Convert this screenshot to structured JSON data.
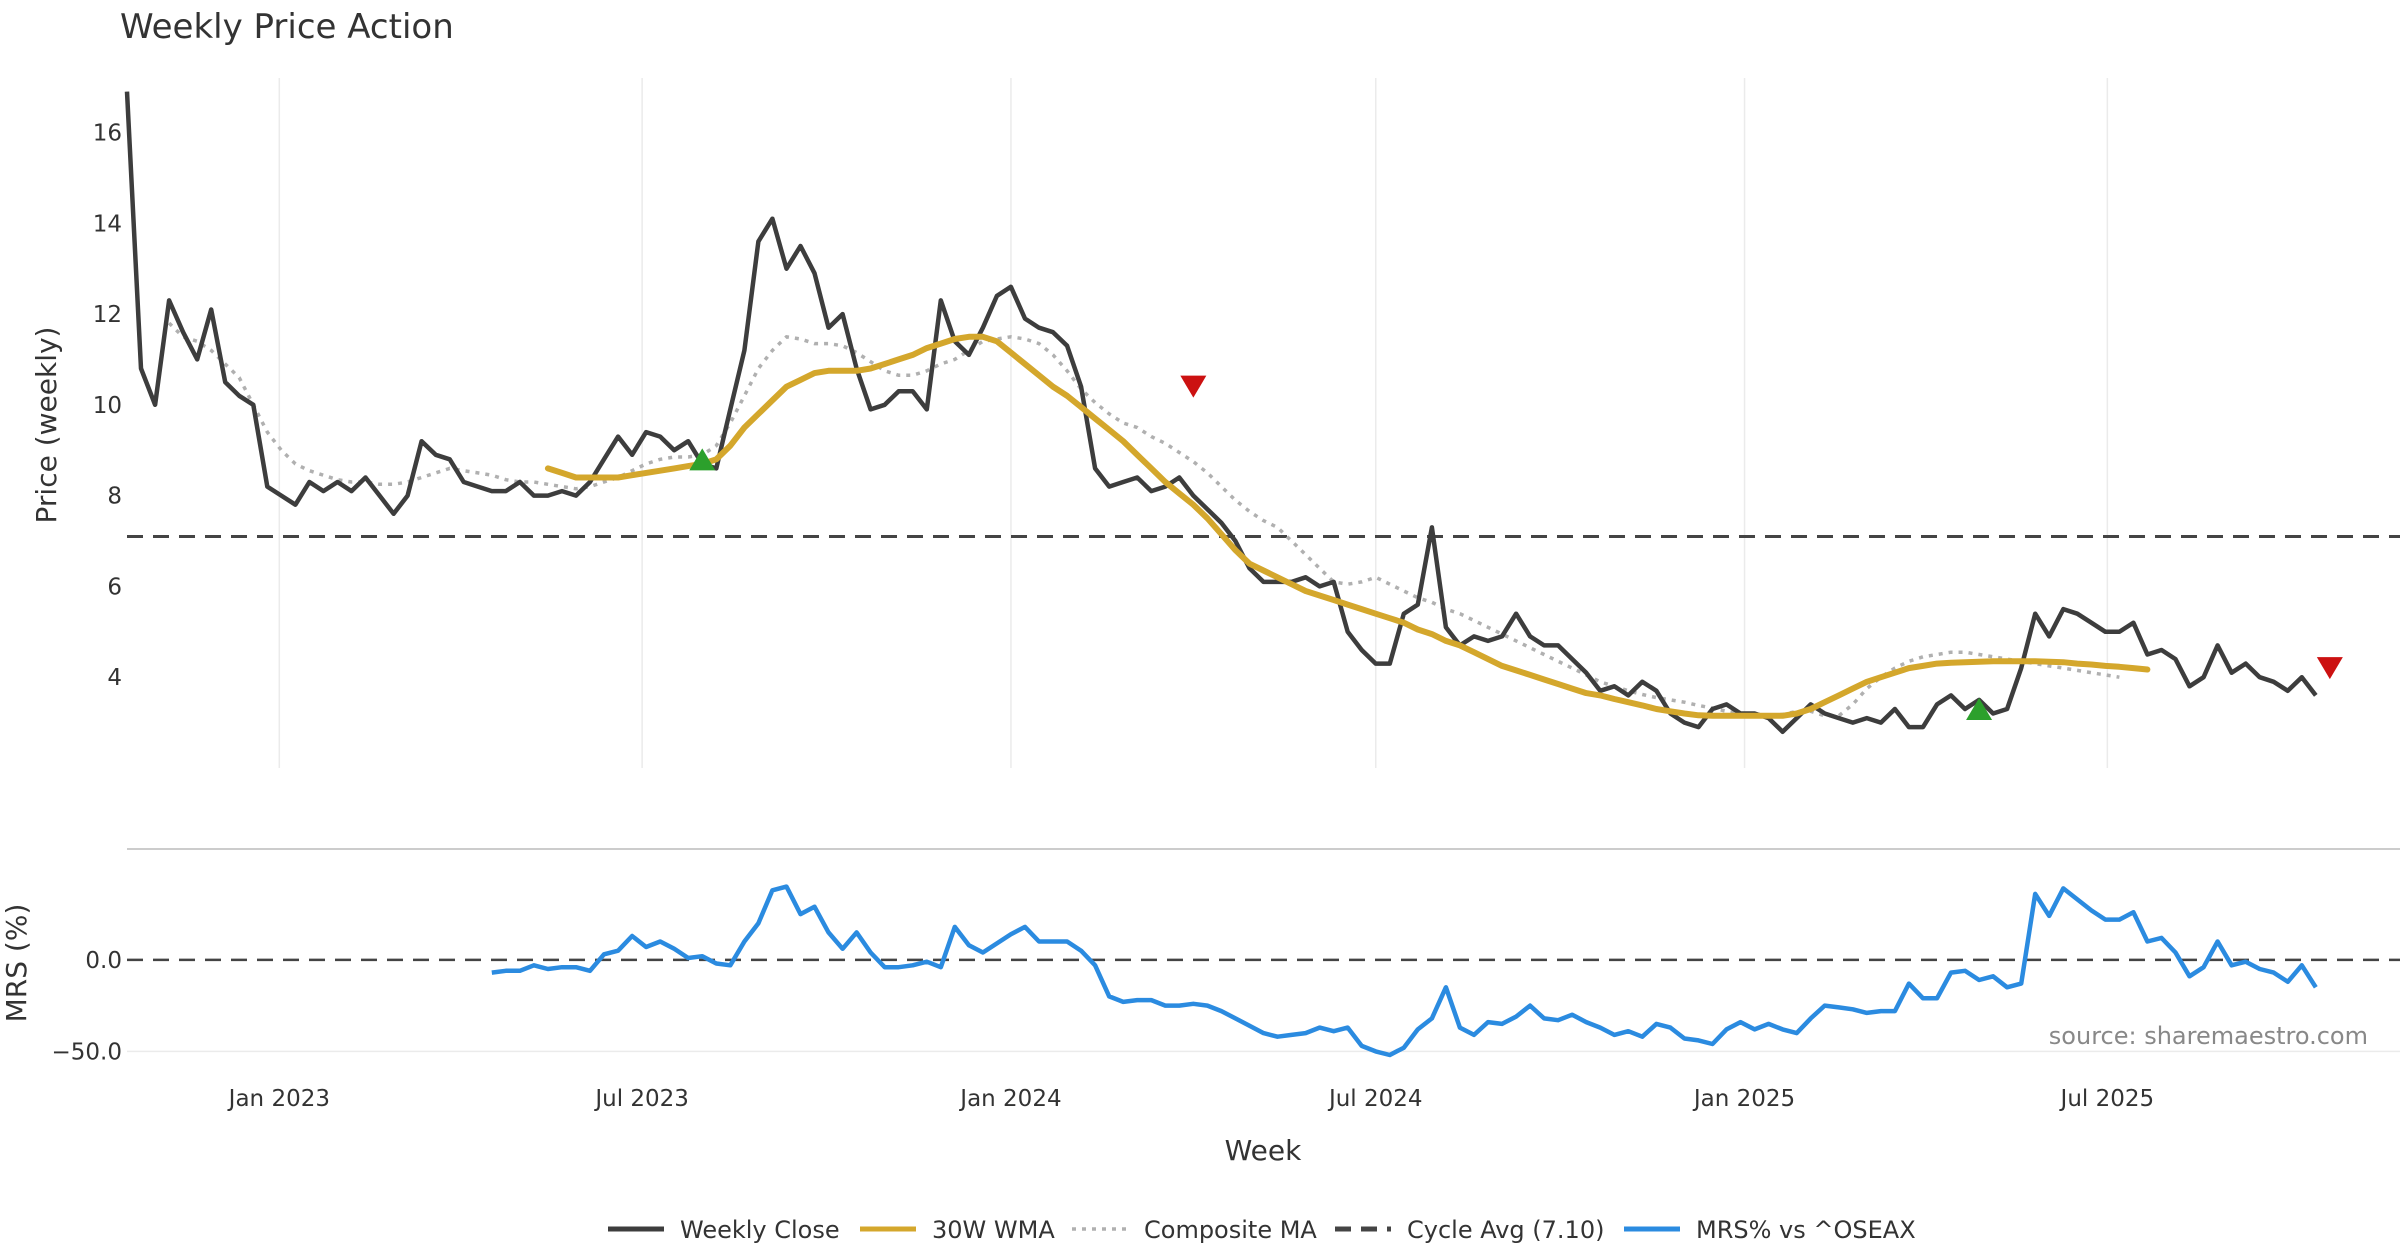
{
  "chart_data": {
    "type": "line",
    "title": "Weekly Price Action",
    "source_note": "source: sharemaestro.com",
    "xlabel": "Week",
    "x_range": [
      "2022-10-17",
      "2025-11-24"
    ],
    "x_ticks": [
      {
        "date": "2023-01-01",
        "label": "Jan 2023"
      },
      {
        "date": "2023-07-01",
        "label": "Jul 2023"
      },
      {
        "date": "2024-01-01",
        "label": "Jan 2024"
      },
      {
        "date": "2024-07-01",
        "label": "Jul 2024"
      },
      {
        "date": "2025-01-01",
        "label": "Jan 2025"
      },
      {
        "date": "2025-07-01",
        "label": "Jul 2025"
      }
    ],
    "price_panel": {
      "ylabel": "Price (weekly)",
      "ylim": [
        2.0,
        17.2
      ],
      "y_ticks": [
        4,
        6,
        8,
        10,
        12,
        14,
        16
      ],
      "cycle_avg": 7.1,
      "weekly_close": {
        "start": "2022-10-17",
        "interval_days": 7,
        "values": [
          16.9,
          10.8,
          10.0,
          12.3,
          11.6,
          11.0,
          12.1,
          10.5,
          10.2,
          10.0,
          8.2,
          8.0,
          7.8,
          8.3,
          8.1,
          8.3,
          8.1,
          8.4,
          8.0,
          7.6,
          8.0,
          9.2,
          8.9,
          8.8,
          8.3,
          8.2,
          8.1,
          8.1,
          8.3,
          8.0,
          8.0,
          8.1,
          8.0,
          8.3,
          8.8,
          9.3,
          8.9,
          9.4,
          9.3,
          9.0,
          9.2,
          8.7,
          8.6,
          9.9,
          11.2,
          13.6,
          14.1,
          13.0,
          13.5,
          12.9,
          11.7,
          12.0,
          10.8,
          9.9,
          10.0,
          10.3,
          10.3,
          9.9,
          12.3,
          11.4,
          11.1,
          11.7,
          12.4,
          12.6,
          11.9,
          11.7,
          11.6,
          11.3,
          10.4,
          8.6,
          8.2,
          8.3,
          8.4,
          8.1,
          8.2,
          8.4,
          8.0,
          7.7,
          7.4,
          7.0,
          6.4,
          6.1,
          6.1,
          6.1,
          6.2,
          6.0,
          6.1,
          5.0,
          4.6,
          4.3,
          4.3,
          5.4,
          5.6,
          7.3,
          5.1,
          4.7,
          4.9,
          4.8,
          4.9,
          5.4,
          4.9,
          4.7,
          4.7,
          4.4,
          4.1,
          3.7,
          3.8,
          3.6,
          3.9,
          3.7,
          3.2,
          3.0,
          2.9,
          3.3,
          3.4,
          3.2,
          3.2,
          3.1,
          2.8,
          3.1,
          3.4,
          3.2,
          3.1,
          3.0,
          3.1,
          3.0,
          3.3,
          2.9,
          2.9,
          3.4,
          3.6,
          3.3,
          3.5,
          3.2,
          3.3,
          4.2,
          5.4,
          4.9,
          5.5,
          5.4,
          5.2,
          5.0,
          5.0,
          5.2,
          4.5,
          4.6,
          4.4,
          3.8,
          4.0,
          4.7,
          4.1,
          4.3,
          4.0,
          3.9,
          3.7,
          4.0,
          3.6
        ]
      },
      "wma_30w": {
        "start": "2023-05-15",
        "interval_days": 7,
        "values": [
          8.6,
          8.5,
          8.4,
          8.4,
          8.4,
          8.4,
          8.45,
          8.5,
          8.55,
          8.6,
          8.65,
          8.7,
          8.8,
          9.1,
          9.5,
          9.8,
          10.1,
          10.4,
          10.55,
          10.7,
          10.75,
          10.75,
          10.75,
          10.8,
          10.9,
          11.0,
          11.1,
          11.25,
          11.35,
          11.45,
          11.5,
          11.5,
          11.4,
          11.15,
          10.9,
          10.65,
          10.4,
          10.2,
          9.95,
          9.7,
          9.45,
          9.2,
          8.9,
          8.6,
          8.3,
          8.05,
          7.8,
          7.5,
          7.15,
          6.8,
          6.5,
          6.35,
          6.2,
          6.05,
          5.9,
          5.8,
          5.7,
          5.6,
          5.5,
          5.4,
          5.3,
          5.2,
          5.05,
          4.95,
          4.8,
          4.7,
          4.55,
          4.4,
          4.25,
          4.15,
          4.05,
          3.95,
          3.85,
          3.75,
          3.65,
          3.6,
          3.52,
          3.45,
          3.38,
          3.3,
          3.25,
          3.2,
          3.16,
          3.15,
          3.15,
          3.15,
          3.15,
          3.15,
          3.15,
          3.2,
          3.3,
          3.45,
          3.6,
          3.75,
          3.9,
          4.0,
          4.1,
          4.2,
          4.25,
          4.3,
          4.32,
          4.33,
          4.34,
          4.35,
          4.35,
          4.35,
          4.35,
          4.34,
          4.33,
          4.3,
          4.28,
          4.25,
          4.23,
          4.2,
          4.17
        ]
      },
      "composite_ma": {
        "start": "2022-11-07",
        "interval_days": 7,
        "values": [
          11.8,
          11.5,
          11.4,
          11.2,
          10.9,
          10.6,
          10.0,
          9.4,
          9.0,
          8.7,
          8.55,
          8.45,
          8.35,
          8.3,
          8.3,
          8.25,
          8.25,
          8.3,
          8.4,
          8.5,
          8.6,
          8.55,
          8.5,
          8.45,
          8.35,
          8.3,
          8.3,
          8.25,
          8.2,
          8.15,
          8.2,
          8.3,
          8.4,
          8.55,
          8.7,
          8.8,
          8.85,
          8.85,
          8.9,
          9.1,
          9.6,
          10.2,
          10.8,
          11.2,
          11.5,
          11.45,
          11.35,
          11.35,
          11.3,
          11.15,
          10.95,
          10.75,
          10.65,
          10.65,
          10.75,
          10.9,
          11.0,
          11.2,
          11.4,
          11.45,
          11.5,
          11.45,
          11.35,
          11.1,
          10.75,
          10.35,
          10.05,
          9.8,
          9.6,
          9.5,
          9.3,
          9.15,
          8.95,
          8.75,
          8.5,
          8.2,
          7.9,
          7.65,
          7.45,
          7.3,
          7.0,
          6.7,
          6.4,
          6.1,
          6.05,
          6.1,
          6.2,
          6.05,
          5.9,
          5.75,
          5.65,
          5.5,
          5.4,
          5.25,
          5.1,
          4.95,
          4.8,
          4.65,
          4.5,
          4.35,
          4.2,
          4.05,
          3.9,
          3.8,
          3.7,
          3.62,
          3.55,
          3.5,
          3.45,
          3.38,
          3.32,
          3.25,
          3.2,
          3.15,
          3.15,
          3.18,
          3.25,
          3.25,
          3.15,
          3.15,
          3.4,
          3.75,
          4.0,
          4.2,
          4.35,
          4.45,
          4.5,
          4.55,
          4.55,
          4.5,
          4.45,
          4.4,
          4.35,
          4.3,
          4.25,
          4.2,
          4.15,
          4.1,
          4.05,
          4.0
        ]
      },
      "buy_signals": [
        {
          "date": "2023-07-31",
          "value": 8.8
        },
        {
          "date": "2025-04-28",
          "value": 3.3
        }
      ],
      "sell_signals": [
        {
          "date": "2024-04-01",
          "value": 10.4
        },
        {
          "date": "2025-10-20",
          "value": 4.2
        }
      ]
    },
    "mrs_panel": {
      "ylabel": "MRS (%)",
      "ylim": [
        -58,
        60
      ],
      "y_ticks": [
        {
          "value": 0,
          "label": "0.0"
        },
        {
          "value": -50,
          "label": "−50.0"
        }
      ],
      "zero_line": 0,
      "mrs_vs_oseax": {
        "start": "2023-04-17",
        "interval_days": 7,
        "values": [
          -7,
          -6,
          -6,
          -3,
          -5,
          -4,
          -4,
          -6,
          3,
          5,
          13,
          7,
          10,
          6,
          1,
          2,
          -2,
          -3,
          10,
          20,
          38,
          40,
          25,
          29,
          15,
          6,
          15,
          4,
          -4,
          -4,
          -3,
          -1,
          -4,
          18,
          8,
          4,
          9,
          14,
          18,
          10,
          10,
          10,
          5,
          -3,
          -20,
          -23,
          -22,
          -22,
          -25,
          -25,
          -24,
          -25,
          -28,
          -32,
          -36,
          -40,
          -42,
          -41,
          -40,
          -37,
          -39,
          -37,
          -47,
          -50,
          -52,
          -48,
          -38,
          -32,
          -15,
          -37,
          -41,
          -34,
          -35,
          -31,
          -25,
          -32,
          -33,
          -30,
          -34,
          -37,
          -41,
          -39,
          -42,
          -35,
          -37,
          -43,
          -44,
          -46,
          -38,
          -34,
          -38,
          -35,
          -38,
          -40,
          -32,
          -25,
          -26,
          -27,
          -29,
          -28,
          -28,
          -13,
          -21,
          -21,
          -7,
          -6,
          -11,
          -9,
          -15,
          -13,
          36,
          24,
          39,
          33,
          27,
          22,
          22,
          26,
          10,
          12,
          4,
          -9,
          -4,
          10,
          -3,
          -1,
          -5,
          -7,
          -12,
          -3,
          -15
        ]
      }
    },
    "legend": {
      "placement": "bottom-center",
      "items": [
        {
          "label": "Weekly Close",
          "color": "#3d3d3d",
          "style": "solid"
        },
        {
          "label": "30W WMA",
          "color": "#d4a72c",
          "style": "solid"
        },
        {
          "label": "Composite MA",
          "color": "#b0b0b0",
          "style": "dotted"
        },
        {
          "label": "Cycle Avg (7.10)",
          "color": "#444444",
          "style": "dashed"
        },
        {
          "label": "MRS% vs ^OSEAX",
          "color": "#2b8be0",
          "style": "solid"
        }
      ]
    },
    "colors": {
      "close": "#3d3d3d",
      "wma": "#d4a72c",
      "composite": "#b0b0b0",
      "cycle": "#444444",
      "mrs": "#2b8be0",
      "buy": "#2ca02c",
      "sell": "#cc1111",
      "grid": "#ebebeb"
    },
    "grid": true
  }
}
